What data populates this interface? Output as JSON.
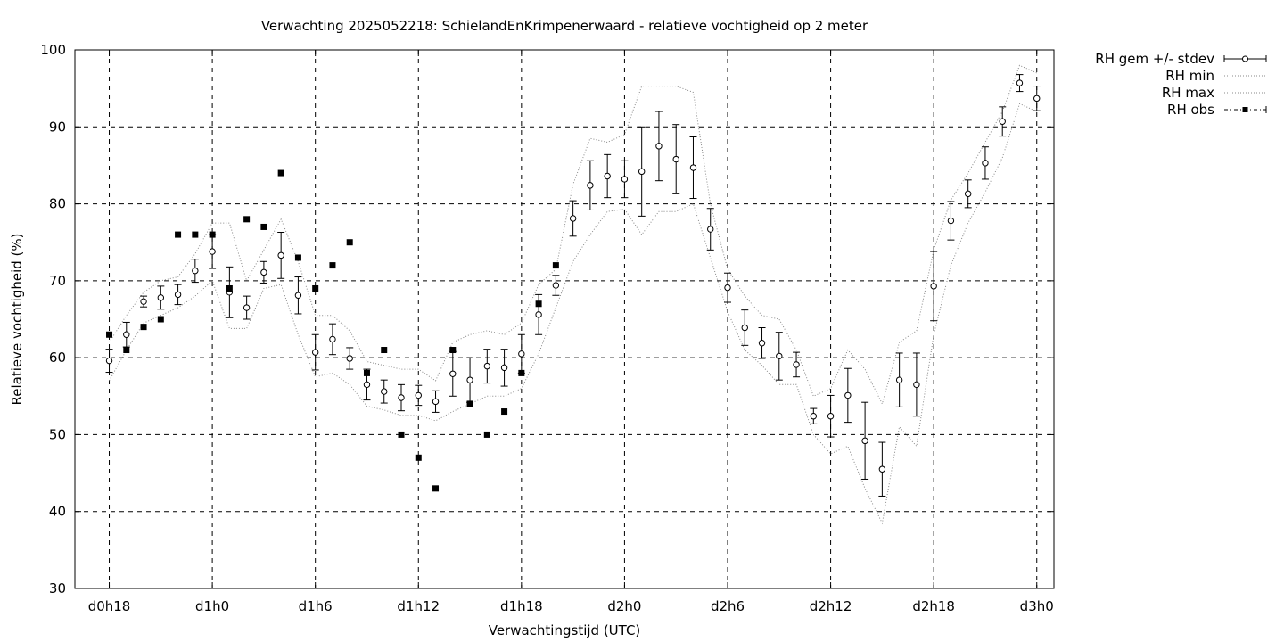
{
  "chart_data": {
    "type": "line",
    "title": "Verwachting 2025052218: SchielandEnKrimpenerwaard - relatieve vochtigheid op 2 meter",
    "xlabel": "Verwachtingstijd (UTC)",
    "ylabel": "Relatieve vochtigheid (%)",
    "ylim": [
      30,
      100
    ],
    "xlim_hours": [
      16,
      73
    ],
    "yticks": [
      30,
      40,
      50,
      60,
      70,
      80,
      90,
      100
    ],
    "xticks": [
      {
        "hour": 18,
        "label": "d0h18"
      },
      {
        "hour": 24,
        "label": "d1h0"
      },
      {
        "hour": 30,
        "label": "d1h6"
      },
      {
        "hour": 36,
        "label": "d1h12"
      },
      {
        "hour": 42,
        "label": "d1h18"
      },
      {
        "hour": 48,
        "label": "d2h0"
      },
      {
        "hour": 54,
        "label": "d2h6"
      },
      {
        "hour": 60,
        "label": "d2h12"
      },
      {
        "hour": 66,
        "label": "d2h18"
      },
      {
        "hour": 72,
        "label": "d3h0"
      }
    ],
    "grid": true,
    "legend_position": "outside-right",
    "legend": [
      {
        "key": "mean",
        "label": "RH gem +/- stdev"
      },
      {
        "key": "min",
        "label": "RH min"
      },
      {
        "key": "max",
        "label": "RH max"
      },
      {
        "key": "obs",
        "label": "RH obs"
      }
    ],
    "series": [
      {
        "name": "RH gem +/- stdev",
        "key": "mean",
        "x": [
          18,
          19,
          20,
          21,
          22,
          23,
          24,
          25,
          26,
          27,
          28,
          29,
          30,
          31,
          32,
          33,
          34,
          35,
          36,
          37,
          38,
          39,
          40,
          41,
          42,
          43,
          44,
          45,
          46,
          47,
          48,
          49,
          50,
          51,
          52,
          53,
          54,
          55,
          56,
          57,
          58,
          59,
          60,
          61,
          62,
          63,
          64,
          65,
          66,
          67,
          68,
          69,
          70,
          71,
          72
        ],
        "values": [
          59.6,
          63.0,
          67.3,
          67.8,
          68.2,
          71.3,
          73.8,
          68.5,
          66.5,
          71.1,
          73.3,
          68.1,
          60.7,
          62.4,
          59.9,
          56.5,
          55.6,
          54.8,
          55.1,
          54.3,
          57.9,
          57.1,
          58.9,
          58.7,
          60.5,
          65.6,
          69.4,
          78.1,
          82.4,
          83.6,
          83.2,
          84.2,
          87.5,
          85.8,
          84.7,
          76.7,
          69.1,
          63.9,
          61.9,
          60.2,
          59.1,
          52.4,
          52.4,
          55.1,
          49.2,
          45.5,
          57.1,
          56.5,
          69.3,
          77.8,
          81.3,
          85.3,
          90.7,
          95.7,
          93.7
        ],
        "stdev": [
          1.5,
          1.6,
          0.7,
          1.5,
          1.3,
          1.5,
          2.2,
          3.3,
          1.5,
          1.4,
          3.0,
          2.4,
          2.3,
          2.0,
          1.4,
          2.0,
          1.5,
          1.7,
          1.3,
          1.4,
          2.9,
          2.9,
          2.2,
          2.4,
          2.5,
          2.6,
          1.3,
          2.3,
          3.2,
          2.8,
          2.4,
          5.8,
          4.5,
          4.5,
          4.0,
          2.7,
          1.9,
          2.3,
          2.0,
          3.1,
          1.6,
          1.0,
          2.7,
          3.5,
          5.0,
          3.5,
          3.5,
          4.1,
          4.5,
          2.5,
          1.8,
          2.1,
          1.9,
          1.1,
          1.6
        ]
      },
      {
        "name": "RH min",
        "key": "min",
        "x": [
          18,
          19,
          20,
          21,
          22,
          23,
          24,
          25,
          26,
          27,
          28,
          29,
          30,
          31,
          32,
          33,
          34,
          35,
          36,
          37,
          38,
          39,
          40,
          41,
          42,
          43,
          44,
          45,
          46,
          47,
          48,
          49,
          50,
          51,
          52,
          53,
          54,
          55,
          56,
          57,
          58,
          59,
          60,
          61,
          62,
          63,
          64,
          65,
          66,
          67,
          68,
          69,
          70,
          71,
          72
        ],
        "values": [
          57.0,
          61.0,
          64.5,
          65.5,
          66.5,
          68.0,
          70.0,
          63.8,
          63.8,
          69.0,
          69.5,
          63.0,
          57.5,
          58.0,
          56.5,
          53.7,
          53.2,
          52.5,
          52.5,
          51.8,
          53.0,
          54.0,
          55.0,
          55.0,
          56.0,
          60.5,
          66.5,
          72.5,
          76.0,
          79.0,
          79.3,
          76.0,
          79.0,
          79.0,
          80.0,
          73.0,
          66.0,
          61.0,
          59.0,
          56.5,
          56.5,
          50.0,
          47.5,
          48.5,
          43.0,
          38.5,
          51.0,
          48.5,
          63.0,
          72.0,
          77.5,
          81.5,
          86.0,
          93.0,
          92.0
        ]
      },
      {
        "name": "RH max",
        "key": "max",
        "x": [
          18,
          19,
          20,
          21,
          22,
          23,
          24,
          25,
          26,
          27,
          28,
          29,
          30,
          31,
          32,
          33,
          34,
          35,
          36,
          37,
          38,
          39,
          40,
          41,
          42,
          43,
          44,
          45,
          46,
          47,
          48,
          49,
          50,
          51,
          52,
          53,
          54,
          55,
          56,
          57,
          58,
          59,
          60,
          61,
          62,
          63,
          64,
          65,
          66,
          67,
          68,
          69,
          70,
          71,
          72
        ],
        "values": [
          62.0,
          65.5,
          68.5,
          70.0,
          70.5,
          73.5,
          77.5,
          77.5,
          70.0,
          74.0,
          78.0,
          72.5,
          65.5,
          65.5,
          63.5,
          59.5,
          59.0,
          58.5,
          58.5,
          57.0,
          62.0,
          63.0,
          63.5,
          63.0,
          64.5,
          69.5,
          71.5,
          82.5,
          88.5,
          88.0,
          89.0,
          95.3,
          95.3,
          95.3,
          94.5,
          80.0,
          71.5,
          68.0,
          65.5,
          65.0,
          61.0,
          55.0,
          56.0,
          61.0,
          58.5,
          54.0,
          62.0,
          63.5,
          74.0,
          80.5,
          84.0,
          88.0,
          92.0,
          98.0,
          97.0
        ]
      },
      {
        "name": "RH obs",
        "key": "obs",
        "x": [
          18,
          19,
          20,
          21,
          22,
          23,
          24,
          25,
          26,
          27,
          28,
          29,
          30,
          31,
          32,
          33,
          34,
          35,
          36,
          37,
          38,
          39,
          40,
          41,
          42,
          43,
          44
        ],
        "values": [
          63,
          61,
          64,
          65,
          76,
          76,
          76,
          69,
          78,
          77,
          84,
          73,
          69,
          72,
          75,
          58,
          61,
          50,
          47,
          43,
          61,
          54,
          50,
          53,
          58,
          67,
          72
        ]
      }
    ]
  }
}
